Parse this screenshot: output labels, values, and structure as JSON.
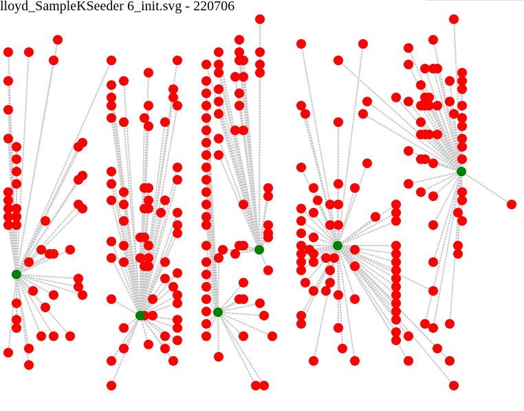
{
  "title": "lloyd_SampleKSeeder 6_init.svg - 220706",
  "colors": {
    "node": "#ff0000",
    "center": "#008000",
    "edge": "#c8c8c8",
    "background": "#ffffff"
  }
}
